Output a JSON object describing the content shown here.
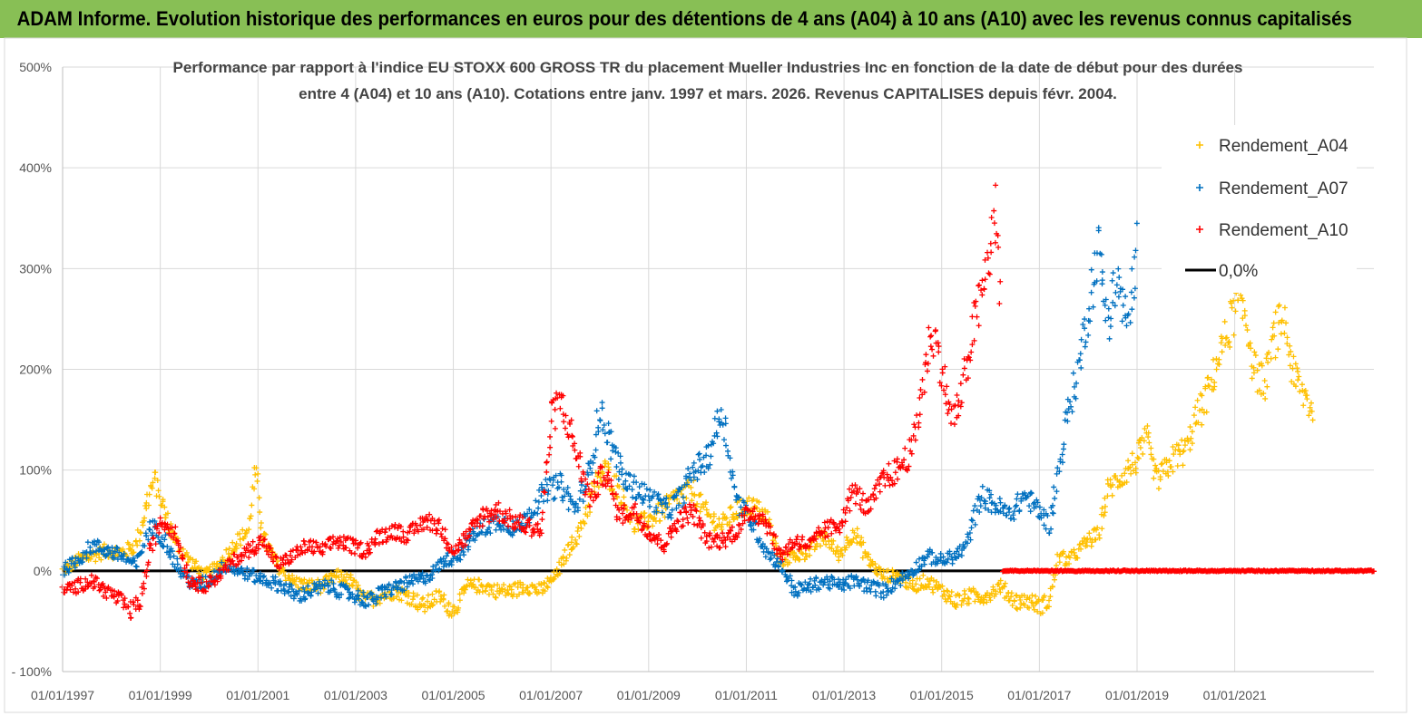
{
  "header": {
    "title": "ADAM Informe. Evolution historique des performances en euros pour des détentions de 4 ans (A04) à 10 ans (A10) avec les revenus connus capitalisés"
  },
  "colors": {
    "banner": "#88bf55",
    "A04": "#ffc000",
    "A07": "#0070c0",
    "A10": "#ff0000",
    "zero": "#000000"
  },
  "chart_data": {
    "type": "scatter",
    "title_line1": "Performance par rapport à l'indice EU STOXX 600 GROSS TR  du placement Mueller Industries Inc en fonction de la date de début pour des durées",
    "title_line2": "entre 4 (A04) et 10 ans (A10). Cotations entre janv. 1997 et mars. 2026. Revenus CAPITALISES depuis févr. 2004.",
    "xlabel": "",
    "ylabel": "",
    "xlim": [
      1997.0,
      2023.85
    ],
    "ylim": [
      -100,
      500
    ],
    "y_ticks": [
      -100,
      0,
      100,
      200,
      300,
      400,
      500
    ],
    "y_tick_labels": [
      "- 100%",
      "0%",
      "100%",
      "200%",
      "300%",
      "400%",
      "500%"
    ],
    "x_ticks": [
      1997,
      1999,
      2001,
      2003,
      2005,
      2007,
      2009,
      2011,
      2013,
      2015,
      2017,
      2019,
      2021
    ],
    "x_tick_labels": [
      "01/01/1997",
      "01/01/1999",
      "01/01/2001",
      "01/01/2003",
      "01/01/2005",
      "01/01/2007",
      "01/01/2009",
      "01/01/2011",
      "01/01/2013",
      "01/01/2015",
      "01/01/2017",
      "01/01/2019",
      "01/01/2021"
    ],
    "legend_position": "top-right",
    "series": [
      {
        "name": "Rendement_A04",
        "marker": "+",
        "x": [
          1997.0,
          1997.3,
          1997.6,
          1997.9,
          1998.2,
          1998.5,
          1998.8,
          1998.9,
          1999.1,
          1999.3,
          1999.6,
          1999.9,
          2000.2,
          2000.5,
          2000.8,
          2000.95,
          2001.1,
          2001.4,
          2001.7,
          2002.0,
          2002.3,
          2002.6,
          2002.9,
          2003.2,
          2003.5,
          2003.8,
          2004.1,
          2004.4,
          2004.7,
          2005.0,
          2005.3,
          2005.6,
          2005.9,
          2006.2,
          2006.5,
          2006.8,
          2007.1,
          2007.4,
          2007.6,
          2007.9,
          2008.1,
          2008.4,
          2008.7,
          2009.0,
          2009.3,
          2009.6,
          2009.9,
          2010.2,
          2010.5,
          2010.8,
          2011.1,
          2011.4,
          2011.7,
          2012.0,
          2012.3,
          2012.6,
          2012.9,
          2013.2,
          2013.5,
          2013.8,
          2014.1,
          2014.4,
          2014.7,
          2015.0,
          2015.3,
          2015.6,
          2015.9,
          2016.2,
          2016.5,
          2016.8,
          2017.0,
          2017.2,
          2017.4,
          2017.6,
          2017.8,
          2018.0,
          2018.2,
          2018.4,
          2018.6,
          2018.8,
          2019.0,
          2019.2,
          2019.4,
          2019.6,
          2019.8,
          2020.0,
          2020.2,
          2020.4,
          2020.6,
          2020.8,
          2021.0,
          2021.2,
          2021.4,
          2021.6,
          2021.8,
          2022.0,
          2022.2,
          2022.4,
          2022.6
        ],
        "y": [
          0,
          10,
          15,
          20,
          18,
          25,
          80,
          90,
          55,
          30,
          10,
          -5,
          5,
          25,
          40,
          100,
          35,
          5,
          -10,
          -15,
          -15,
          -5,
          -10,
          -30,
          -25,
          -20,
          -25,
          -35,
          -25,
          -40,
          -15,
          -15,
          -20,
          -20,
          -15,
          -20,
          -5,
          25,
          40,
          85,
          100,
          80,
          45,
          50,
          60,
          75,
          80,
          55,
          45,
          60,
          65,
          55,
          10,
          15,
          20,
          35,
          15,
          40,
          10,
          -5,
          -5,
          -15,
          -10,
          -20,
          -30,
          -25,
          -25,
          -15,
          -30,
          -30,
          -35,
          -30,
          15,
          10,
          20,
          30,
          35,
          80,
          90,
          100,
          110,
          130,
          90,
          100,
          115,
          120,
          150,
          170,
          200,
          230,
          260,
          260,
          200,
          185,
          230,
          250,
          195,
          175,
          160
        ]
      },
      {
        "name": "Rendement_A07",
        "marker": "+",
        "x": [
          1997.0,
          1997.3,
          1997.6,
          1997.9,
          1998.2,
          1998.5,
          1998.8,
          1999.1,
          1999.4,
          1999.7,
          2000.0,
          2000.3,
          2000.6,
          2000.9,
          2001.2,
          2001.5,
          2001.8,
          2002.1,
          2002.4,
          2002.7,
          2003.0,
          2003.3,
          2003.6,
          2003.9,
          2004.2,
          2004.5,
          2004.8,
          2005.1,
          2005.4,
          2005.7,
          2006.0,
          2006.3,
          2006.6,
          2006.9,
          2007.2,
          2007.5,
          2007.8,
          2008.0,
          2008.2,
          2008.5,
          2008.8,
          2009.1,
          2009.4,
          2009.7,
          2009.9,
          2010.2,
          2010.5,
          2010.8,
          2011.1,
          2011.4,
          2011.7,
          2012.0,
          2012.3,
          2012.6,
          2012.9,
          2013.2,
          2013.5,
          2013.8,
          2014.1,
          2014.4,
          2014.7,
          2015.0,
          2015.3,
          2015.5,
          2015.8,
          2016.1,
          2016.4,
          2016.7,
          2017.0,
          2017.2,
          2017.4,
          2017.6,
          2017.8,
          2018.0,
          2018.2,
          2018.4,
          2018.6,
          2018.8,
          2019.0
        ],
        "y": [
          0,
          10,
          25,
          20,
          15,
          5,
          45,
          30,
          0,
          -15,
          -10,
          5,
          0,
          -5,
          -10,
          -15,
          -25,
          -20,
          -15,
          -20,
          -25,
          -30,
          -20,
          -15,
          -10,
          -5,
          10,
          15,
          35,
          45,
          50,
          40,
          60,
          80,
          85,
          60,
          100,
          160,
          130,
          90,
          80,
          70,
          60,
          75,
          100,
          110,
          160,
          70,
          50,
          20,
          5,
          -20,
          -15,
          -10,
          -15,
          -10,
          -15,
          -20,
          -10,
          0,
          15,
          10,
          15,
          25,
          75,
          65,
          55,
          75,
          60,
          45,
          100,
          160,
          200,
          260,
          320,
          250,
          290,
          240,
          320
        ]
      },
      {
        "name": "Rendement_A10",
        "marker": "+",
        "x": [
          1997.0,
          1997.3,
          1997.6,
          1997.9,
          1998.2,
          1998.4,
          1998.6,
          1998.8,
          1999.0,
          1999.3,
          1999.6,
          1999.9,
          2000.2,
          2000.5,
          2000.8,
          2001.1,
          2001.4,
          2001.7,
          2002.0,
          2002.3,
          2002.6,
          2002.9,
          2003.2,
          2003.5,
          2003.8,
          2004.1,
          2004.4,
          2004.7,
          2005.0,
          2005.3,
          2005.6,
          2005.9,
          2006.2,
          2006.5,
          2006.8,
          2007.0,
          2007.2,
          2007.5,
          2007.8,
          2008.1,
          2008.4,
          2008.7,
          2009.0,
          2009.3,
          2009.6,
          2009.9,
          2010.2,
          2010.5,
          2010.8,
          2011.1,
          2011.4,
          2011.7,
          2012.0,
          2012.3,
          2012.6,
          2012.9,
          2013.2,
          2013.5,
          2013.8,
          2014.1,
          2014.4,
          2014.6,
          2014.8,
          2015.0,
          2015.2,
          2015.4,
          2015.6,
          2015.8,
          2016.0,
          2016.1,
          2016.2
        ],
        "y": [
          -20,
          -15,
          -10,
          -20,
          -30,
          -40,
          -30,
          20,
          50,
          40,
          -10,
          -15,
          -5,
          10,
          20,
          30,
          5,
          15,
          25,
          20,
          30,
          25,
          20,
          35,
          40,
          35,
          50,
          45,
          20,
          35,
          55,
          60,
          50,
          45,
          40,
          150,
          170,
          120,
          70,
          100,
          55,
          60,
          40,
          25,
          50,
          60,
          30,
          30,
          40,
          60,
          50,
          15,
          30,
          25,
          40,
          45,
          80,
          60,
          90,
          100,
          120,
          180,
          240,
          200,
          150,
          170,
          230,
          270,
          320,
          360,
          280
        ]
      },
      {
        "name": "0,0%",
        "marker": "line",
        "x": [
          1997.0,
          2023.85
        ],
        "y": [
          0,
          0
        ]
      }
    ],
    "a10_zero_from": 2016.25
  }
}
